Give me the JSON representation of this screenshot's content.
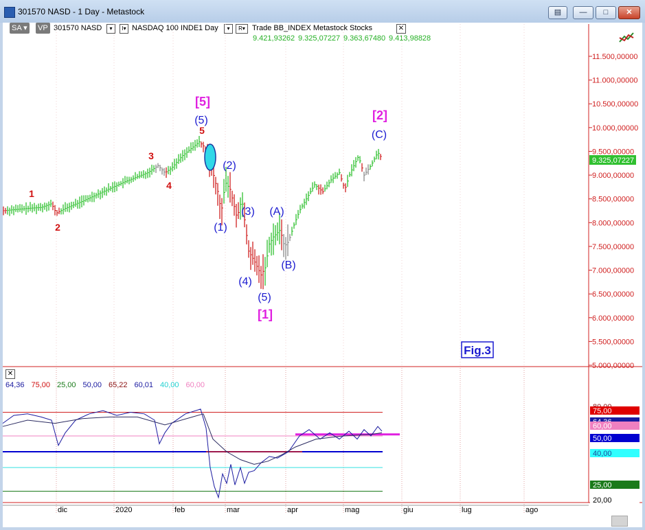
{
  "window": {
    "title": "301570 NASD - 1 Day - Metastock"
  },
  "toolbar": {
    "sa": "SA",
    "vp": "VP",
    "symbol": "301570 NASD",
    "index": "NASDAQ 100 INDE",
    "period": "1 Day",
    "r": "R",
    "trade": "Trade  BB_INDEX  Metastock  Stocks"
  },
  "ohlc": [
    "9.421,93262",
    "9.325,07227",
    "9.363,67480",
    "9.413,98828"
  ],
  "price_axis": [
    "11.500,00000",
    "11.000,00000",
    "10.500,00000",
    "10.000,00000",
    "9.500,00000",
    "9.000,00000",
    "8.500,00000",
    "8.000,00000",
    "7.500,00000",
    "7.000,00000",
    "6.500,00000",
    "6.000,00000",
    "5.500,00000",
    "5.000,00000"
  ],
  "last_price": "9.325,07227",
  "time_axis": [
    "dic",
    "2020",
    "feb",
    "mar",
    "apr",
    "mag",
    "giu",
    "lug",
    "ago"
  ],
  "fig_label": "Fig.3",
  "wave_labels": {
    "minor": [
      "1",
      "2",
      "3",
      "4",
      "5"
    ],
    "intermediate": [
      "(5)",
      "(1)",
      "(2)",
      "(3)",
      "(4)",
      "(5)",
      "(A)",
      "(B)",
      "(C)"
    ],
    "primary": [
      "[5]",
      "[1]",
      "[2]"
    ]
  },
  "oscillator": {
    "values": [
      {
        "text": "64,36",
        "color": "#1a1aa0"
      },
      {
        "text": "75,00",
        "color": "#d01010"
      },
      {
        "text": "25,00",
        "color": "#1a7a1a"
      },
      {
        "text": "50,00",
        "color": "#1a1aa0"
      },
      {
        "text": "65,22",
        "color": "#8a1010"
      },
      {
        "text": "60,01",
        "color": "#1a1aa0"
      },
      {
        "text": "40,00",
        "color": "#20d0d0"
      },
      {
        "text": "60,00",
        "color": "#f080c0"
      }
    ],
    "axis_tags": [
      {
        "text": "80,00",
        "color": "#ffffff",
        "fg": "#8a1010"
      },
      {
        "text": "75,00",
        "color": "#e00000",
        "fg": "#ffffff"
      },
      {
        "text": "64,36",
        "color": "#1a1aa0",
        "fg": "#ffffff"
      },
      {
        "text": "60,00",
        "color": "#f080c0",
        "fg": "#ffffff"
      },
      {
        "text": "50,00",
        "color": "#0000d0",
        "fg": "#ffffff"
      },
      {
        "text": "40,00",
        "color": "#30ffff",
        "fg": "#1a4a9a"
      },
      {
        "text": "25,00",
        "color": "#1a7a1a",
        "fg": "#ffffff"
      },
      {
        "text": "20,00",
        "color": "#ffffff",
        "fg": "#000000"
      }
    ]
  },
  "colors": {
    "bull": "#30c030",
    "bear": "#d02020",
    "neutral": "#888888",
    "wave_blue": "#1a1ad0",
    "wave_magenta": "#e020e0",
    "wave_red": "#d01010"
  }
}
